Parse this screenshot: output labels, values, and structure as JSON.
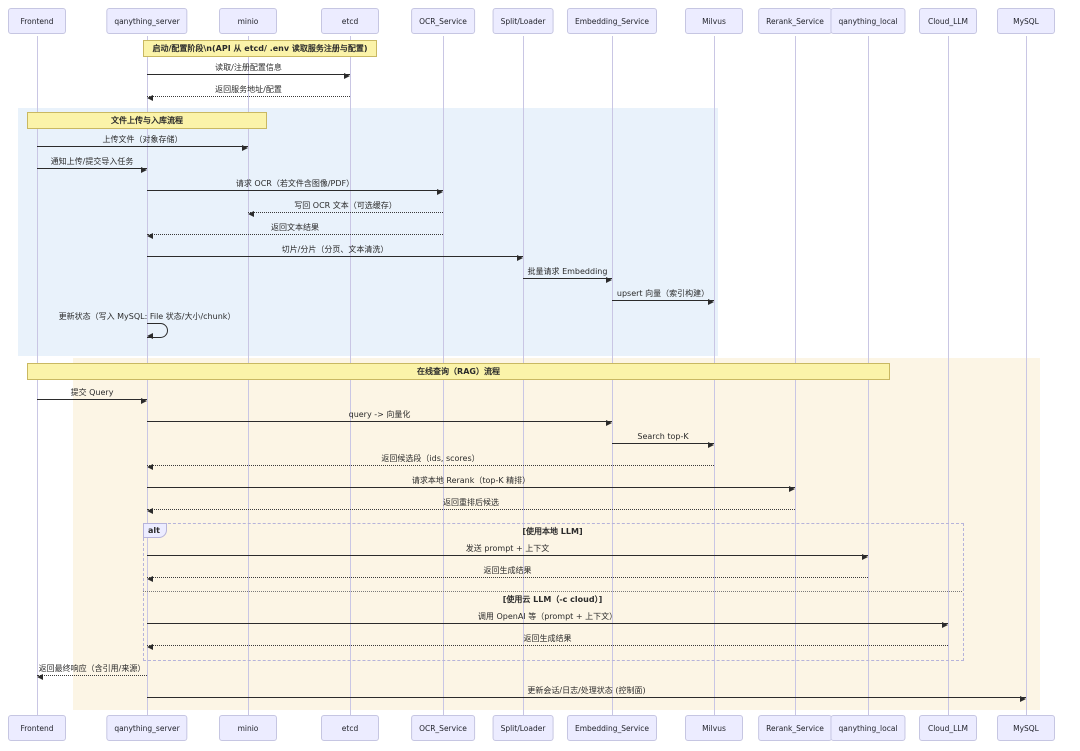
{
  "diagram": {
    "colors": {
      "participant_fill": "#ECECFF",
      "participant_border": "#c6c6e2",
      "note_fill": "#FBF3A9",
      "note_border": "#c9b862",
      "region_upload_ingest": "#E9F2FB",
      "region_rag_query": "#FCF5E5",
      "message_line": "#2b2b2b",
      "lifeline": "#c9c6e4",
      "alt_frame_border": "#b6b3da",
      "alt_tab_fill": "#ECECFF"
    },
    "participants": [
      {
        "id": "Frontend",
        "label": "Frontend"
      },
      {
        "id": "qanything_server",
        "label": "qanything_server"
      },
      {
        "id": "minio",
        "label": "minio"
      },
      {
        "id": "etcd",
        "label": "etcd"
      },
      {
        "id": "OCR_Service",
        "label": "OCR_Service"
      },
      {
        "id": "Split/Loader",
        "label": "Split/Loader"
      },
      {
        "id": "Embedding_Service",
        "label": "Embedding_Service"
      },
      {
        "id": "Milvus",
        "label": "Milvus"
      },
      {
        "id": "Rerank_Service",
        "label": "Rerank_Service"
      },
      {
        "id": "qanything_local",
        "label": "qanything_local"
      },
      {
        "id": "Cloud_LLM",
        "label": "Cloud_LLM"
      },
      {
        "id": "MySQL",
        "label": "MySQL"
      }
    ],
    "sequence": [
      {
        "kind": "note",
        "name": "note-startup-config",
        "from": "qanything_server",
        "to": "etcd",
        "label": "启动/配置阶段\\n(API 从 etcd/ .env 读取服务注册与配置)"
      },
      {
        "kind": "message",
        "name": "read-register-config",
        "from": "qanything_server",
        "to": "etcd",
        "style": "solid",
        "label": "读取/注册配置信息"
      },
      {
        "kind": "message",
        "name": "return-service-addr-config",
        "from": "etcd",
        "to": "qanything_server",
        "style": "dotted",
        "label": "返回服务地址/配置"
      },
      {
        "kind": "region_start",
        "name": "upload-ingest"
      },
      {
        "kind": "note",
        "name": "note-upload-ingest-title",
        "from": "Frontend",
        "to": "qanything_server",
        "label": "文件上传与入库流程"
      },
      {
        "kind": "message",
        "name": "upload-file-object-storage",
        "from": "Frontend",
        "to": "minio",
        "style": "solid",
        "label": "上传文件（对象存储）"
      },
      {
        "kind": "message",
        "name": "notify-upload-submit-import",
        "from": "Frontend",
        "to": "qanything_server",
        "style": "solid",
        "label": "通知上传/提交导入任务"
      },
      {
        "kind": "message",
        "name": "request-ocr",
        "from": "qanything_server",
        "to": "OCR_Service",
        "style": "solid",
        "label": "请求 OCR（若文件含图像/PDF）"
      },
      {
        "kind": "message",
        "name": "writeback-ocr-text",
        "from": "OCR_Service",
        "to": "minio",
        "style": "dotted",
        "label": "写回 OCR 文本（可选缓存）"
      },
      {
        "kind": "message",
        "name": "return-text-result",
        "from": "OCR_Service",
        "to": "qanything_server",
        "style": "dotted",
        "label": "返回文本结果"
      },
      {
        "kind": "message",
        "name": "split-chunk-clean",
        "from": "qanything_server",
        "to": "Split/Loader",
        "style": "solid",
        "label": "切片/分片（分页、文本清洗）"
      },
      {
        "kind": "message",
        "name": "batch-request-embedding",
        "from": "Split/Loader",
        "to": "Embedding_Service",
        "style": "solid",
        "label": "批量请求 Embedding"
      },
      {
        "kind": "message",
        "name": "upsert-vectors-index",
        "from": "Embedding_Service",
        "to": "Milvus",
        "style": "solid",
        "label": "upsert 向量（索引构建）"
      },
      {
        "kind": "self",
        "name": "update-status-mysql",
        "on": "qanything_server",
        "label": "更新状态（写入 MySQL: File 状态/大小/chunk）"
      },
      {
        "kind": "region_end",
        "name": "upload-ingest"
      },
      {
        "kind": "region_start",
        "name": "rag-query"
      },
      {
        "kind": "bar_note",
        "name": "note-online-rag-title",
        "from": "Frontend",
        "to": "qanything_local",
        "label": "在线查询（RAG）流程"
      },
      {
        "kind": "message",
        "name": "submit-query",
        "from": "Frontend",
        "to": "qanything_server",
        "style": "solid",
        "label": "提交 Query"
      },
      {
        "kind": "message",
        "name": "query-vectorize",
        "from": "qanything_server",
        "to": "Embedding_Service",
        "style": "solid",
        "label": "query -> 向量化"
      },
      {
        "kind": "message",
        "name": "search-top-k",
        "from": "Embedding_Service",
        "to": "Milvus",
        "style": "solid",
        "label": "Search top-K"
      },
      {
        "kind": "message",
        "name": "return-candidates",
        "from": "Milvus",
        "to": "qanything_server",
        "style": "dotted",
        "label": "返回候选段（ids, scores）"
      },
      {
        "kind": "message",
        "name": "request-local-rerank",
        "from": "qanything_server",
        "to": "Rerank_Service",
        "style": "solid",
        "label": "请求本地 Rerank（top-K 精排）"
      },
      {
        "kind": "message",
        "name": "return-reranked",
        "from": "Rerank_Service",
        "to": "qanything_server",
        "style": "dotted",
        "label": "返回重排后候选"
      },
      {
        "kind": "alt_start",
        "name": "alt-use-local-llm",
        "tab_label": "alt",
        "condition": "[使用本地 LLM]"
      },
      {
        "kind": "message",
        "name": "send-prompt-context",
        "from": "qanything_server",
        "to": "qanything_local",
        "style": "solid",
        "label": "发送 prompt + 上下文"
      },
      {
        "kind": "message",
        "name": "return-generation-local",
        "from": "qanything_local",
        "to": "qanything_server",
        "style": "dotted",
        "label": "返回生成结果"
      },
      {
        "kind": "alt_else",
        "name": "alt-use-cloud-llm",
        "condition": "[使用云 LLM（-c cloud）]"
      },
      {
        "kind": "message",
        "name": "call-openai-prompt-context",
        "from": "qanything_server",
        "to": "Cloud_LLM",
        "style": "solid",
        "label": "调用 OpenAI 等（prompt + 上下文）"
      },
      {
        "kind": "message",
        "name": "return-generation-cloud",
        "from": "Cloud_LLM",
        "to": "qanything_server",
        "style": "dotted",
        "label": "返回生成结果"
      },
      {
        "kind": "alt_end"
      },
      {
        "kind": "message",
        "name": "return-final-response",
        "from": "qanything_server",
        "to": "Frontend",
        "style": "dotted",
        "label": "返回最终响应（含引用/来源）"
      },
      {
        "kind": "message",
        "name": "update-session-logs-status",
        "from": "qanything_server",
        "to": "MySQL",
        "style": "solid",
        "label": "更新会话/日志/处理状态 (控制面)"
      },
      {
        "kind": "region_end",
        "name": "rag-query"
      }
    ]
  }
}
